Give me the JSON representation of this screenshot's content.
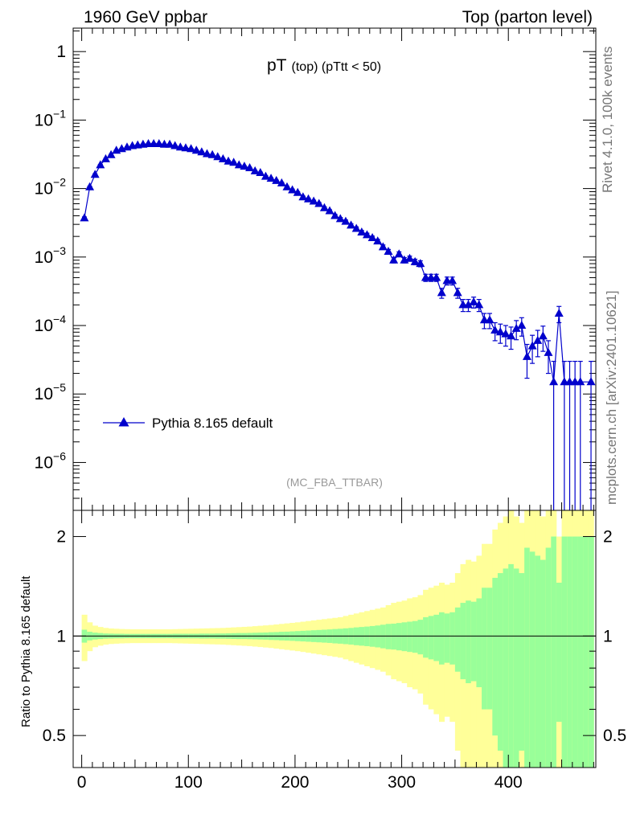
{
  "header": {
    "left": "1960 GeV ppbar",
    "right": "Top (parton level)"
  },
  "side": {
    "rivet": "Rivet 4.1.0,  100k events",
    "mcplots": "mcplots.cern.ch [arXiv:2401.10621]"
  },
  "chart_data": {
    "type": "line",
    "title_main": "pT",
    "title_sub": "(top) (pTtt < 50)",
    "analysis": "(MC_FBA_TTBAR)",
    "legend": "Pythia 8.165 default",
    "yscale": "log",
    "ylim": [
      2e-07,
      2.2
    ],
    "xlim": [
      -8,
      482
    ],
    "y_ticks": [
      {
        "v": 1,
        "base": "1",
        "exp": ""
      },
      {
        "v": 0.1,
        "base": "10",
        "exp": "−1"
      },
      {
        "v": 0.01,
        "base": "10",
        "exp": "−2"
      },
      {
        "v": 0.001,
        "base": "10",
        "exp": "−3"
      },
      {
        "v": 0.0001,
        "base": "10",
        "exp": "−4"
      },
      {
        "v": 1e-05,
        "base": "10",
        "exp": "−5"
      },
      {
        "v": 1e-06,
        "base": "10",
        "exp": "−6"
      }
    ],
    "series": [
      {
        "name": "Pythia 8.165 default",
        "color": "#0000cc",
        "x": [
          2.5,
          7.5,
          12.5,
          17.5,
          22.5,
          27.5,
          32.5,
          37.5,
          42.5,
          47.5,
          52.5,
          57.5,
          62.5,
          67.5,
          72.5,
          77.5,
          82.5,
          87.5,
          92.5,
          97.5,
          102.5,
          107.5,
          112.5,
          117.5,
          122.5,
          127.5,
          132.5,
          137.5,
          142.5,
          147.5,
          152.5,
          157.5,
          162.5,
          167.5,
          172.5,
          177.5,
          182.5,
          187.5,
          192.5,
          197.5,
          202.5,
          207.5,
          212.5,
          217.5,
          222.5,
          227.5,
          232.5,
          237.5,
          242.5,
          247.5,
          252.5,
          257.5,
          262.5,
          267.5,
          272.5,
          277.5,
          282.5,
          287.5,
          292.5,
          297.5,
          302.5,
          307.5,
          312.5,
          317.5,
          322.5,
          327.5,
          332.5,
          337.5,
          342.5,
          347.5,
          352.5,
          357.5,
          362.5,
          367.5,
          372.5,
          377.5,
          382.5,
          387.5,
          392.5,
          397.5,
          402.5,
          407.5,
          412.5,
          417.5,
          422.5,
          427.5,
          432.5,
          437.5,
          442.5,
          447.5,
          452.5,
          457.5,
          462.5,
          467.5,
          477.5
        ],
        "y": [
          0.0037,
          0.0105,
          0.016,
          0.022,
          0.027,
          0.031,
          0.036,
          0.038,
          0.04,
          0.042,
          0.043,
          0.044,
          0.045,
          0.045,
          0.045,
          0.044,
          0.044,
          0.042,
          0.04,
          0.039,
          0.038,
          0.036,
          0.034,
          0.032,
          0.031,
          0.029,
          0.027,
          0.025,
          0.024,
          0.022,
          0.021,
          0.02,
          0.018,
          0.017,
          0.015,
          0.014,
          0.013,
          0.012,
          0.0105,
          0.0095,
          0.0087,
          0.0075,
          0.007,
          0.0065,
          0.006,
          0.0052,
          0.0047,
          0.004,
          0.0036,
          0.0033,
          0.0029,
          0.0026,
          0.0023,
          0.0021,
          0.0019,
          0.0017,
          0.0014,
          0.0012,
          0.0009,
          0.0011,
          0.0009,
          0.00095,
          0.00085,
          0.0008,
          0.0005,
          0.0005,
          0.0005,
          0.0003,
          0.00045,
          0.00045,
          0.0003,
          0.0002,
          0.0002,
          0.00022,
          0.0002,
          0.00012,
          0.00012,
          8.5e-05,
          8e-05,
          7.5e-05,
          7e-05,
          9e-05,
          0.0001,
          3.5e-05,
          5e-05,
          6e-05,
          7e-05,
          4e-05,
          1.5e-05,
          0.00015,
          1.5e-05,
          1.5e-05,
          1.5e-05,
          1.5e-05,
          1.5e-05
        ],
        "err_lo": [
          0.00015,
          0.0003,
          0.0004,
          0.0005,
          0.0005,
          0.0006,
          0.0006,
          0.0007,
          0.0007,
          0.0007,
          0.0007,
          0.0007,
          0.0007,
          0.0007,
          0.0007,
          0.0007,
          0.0007,
          0.0007,
          0.0006,
          0.0006,
          0.0006,
          0.0006,
          0.0006,
          0.0006,
          0.0005,
          0.0005,
          0.0005,
          0.0005,
          0.0005,
          0.0005,
          0.0004,
          0.0004,
          0.0004,
          0.0004,
          0.0004,
          0.0004,
          0.0003,
          0.0003,
          0.0003,
          0.0003,
          0.0003,
          0.00025,
          0.00025,
          0.00025,
          0.00025,
          0.0002,
          0.0002,
          0.0002,
          0.00018,
          0.00017,
          0.00016,
          0.00015,
          0.00014,
          0.00013,
          0.00012,
          0.00011,
          0.0001,
          9e-05,
          8e-05,
          9e-05,
          8e-05,
          8e-05,
          8e-05,
          8e-05,
          6e-05,
          6e-05,
          6e-05,
          5e-05,
          6e-05,
          6e-05,
          5e-05,
          4e-05,
          4e-05,
          4e-05,
          4e-05,
          3e-05,
          3e-05,
          2.5e-05,
          2.5e-05,
          2.5e-05,
          2.5e-05,
          2.8e-05,
          3e-05,
          1.8e-05,
          2.2e-05,
          2.5e-05,
          2.8e-05,
          2e-05,
          1.49e-05,
          4e-05,
          1.49e-05,
          1.49e-05,
          1.49e-05,
          1.49e-05,
          1.49e-05
        ],
        "err_hi": [
          0.00015,
          0.0003,
          0.0004,
          0.0005,
          0.0005,
          0.0006,
          0.0006,
          0.0007,
          0.0007,
          0.0007,
          0.0007,
          0.0007,
          0.0007,
          0.0007,
          0.0007,
          0.0007,
          0.0007,
          0.0007,
          0.0006,
          0.0006,
          0.0006,
          0.0006,
          0.0006,
          0.0006,
          0.0005,
          0.0005,
          0.0005,
          0.0005,
          0.0005,
          0.0005,
          0.0004,
          0.0004,
          0.0004,
          0.0004,
          0.0004,
          0.0004,
          0.0003,
          0.0003,
          0.0003,
          0.0003,
          0.0003,
          0.00025,
          0.00025,
          0.00025,
          0.00025,
          0.0002,
          0.0002,
          0.0002,
          0.00018,
          0.00017,
          0.00016,
          0.00015,
          0.00014,
          0.00013,
          0.00012,
          0.00011,
          0.0001,
          9e-05,
          8e-05,
          9e-05,
          8e-05,
          8e-05,
          8e-05,
          8e-05,
          6e-05,
          6e-05,
          6e-05,
          5e-05,
          6e-05,
          6e-05,
          5e-05,
          4e-05,
          4e-05,
          4e-05,
          4e-05,
          3e-05,
          3e-05,
          2.5e-05,
          2.5e-05,
          2.5e-05,
          2.5e-05,
          2.8e-05,
          3e-05,
          1.8e-05,
          2.2e-05,
          2.5e-05,
          2.8e-05,
          2e-05,
          1.5e-05,
          4e-05,
          1.5e-05,
          1.5e-05,
          1.5e-05,
          1.5e-05,
          1.5e-05
        ]
      }
    ],
    "ratio": {
      "ylabel": "Ratio to Pythia 8.165 default",
      "yscale": "log",
      "ylim": [
        0.4,
        2.4
      ],
      "reference": 1,
      "y_ticks": [
        {
          "v": 0.5,
          "label": "0.5"
        },
        {
          "v": 1,
          "label": "1"
        },
        {
          "v": 2,
          "label": "2"
        }
      ],
      "x_ticks": [
        0,
        100,
        200,
        300,
        400
      ],
      "bins": [
        0,
        5,
        10,
        15,
        20,
        25,
        30,
        35,
        40,
        45,
        50,
        55,
        60,
        65,
        70,
        75,
        80,
        85,
        90,
        95,
        100,
        105,
        110,
        115,
        120,
        125,
        130,
        135,
        140,
        145,
        150,
        155,
        160,
        165,
        170,
        175,
        180,
        185,
        190,
        195,
        200,
        205,
        210,
        215,
        220,
        225,
        230,
        235,
        240,
        245,
        250,
        255,
        260,
        265,
        270,
        275,
        280,
        285,
        290,
        295,
        300,
        305,
        310,
        315,
        320,
        325,
        330,
        335,
        340,
        345,
        350,
        355,
        360,
        365,
        370,
        375,
        380,
        385,
        390,
        395,
        400,
        405,
        410,
        415,
        420,
        425,
        430,
        435,
        440,
        445,
        450,
        455,
        460,
        465,
        470,
        475,
        480
      ],
      "band_green": [
        0.045,
        0.03,
        0.024,
        0.021,
        0.018,
        0.017,
        0.016,
        0.016,
        0.015,
        0.015,
        0.015,
        0.015,
        0.015,
        0.015,
        0.015,
        0.015,
        0.015,
        0.016,
        0.016,
        0.016,
        0.016,
        0.016,
        0.017,
        0.017,
        0.017,
        0.018,
        0.018,
        0.019,
        0.02,
        0.021,
        0.021,
        0.022,
        0.023,
        0.024,
        0.025,
        0.027,
        0.028,
        0.03,
        0.031,
        0.033,
        0.035,
        0.037,
        0.039,
        0.041,
        0.043,
        0.045,
        0.047,
        0.05,
        0.052,
        0.055,
        0.058,
        0.062,
        0.065,
        0.068,
        0.072,
        0.076,
        0.082,
        0.088,
        0.09,
        0.095,
        0.1,
        0.105,
        0.11,
        0.12,
        0.14,
        0.15,
        0.16,
        0.18,
        0.17,
        0.18,
        0.22,
        0.26,
        0.28,
        0.27,
        0.3,
        0.4,
        0.4,
        0.5,
        0.55,
        0.6,
        0.65,
        0.6,
        0.55,
        0.85,
        0.8,
        0.75,
        0.7,
        0.85,
        1.0,
        0.45,
        1.0,
        1.0,
        1.0,
        1.0,
        1.0,
        1.0
      ],
      "band_yellow": [
        0.16,
        0.1,
        0.075,
        0.065,
        0.058,
        0.054,
        0.052,
        0.05,
        0.049,
        0.048,
        0.048,
        0.048,
        0.048,
        0.048,
        0.048,
        0.048,
        0.048,
        0.049,
        0.05,
        0.051,
        0.052,
        0.053,
        0.054,
        0.055,
        0.056,
        0.057,
        0.058,
        0.06,
        0.062,
        0.064,
        0.066,
        0.068,
        0.071,
        0.074,
        0.077,
        0.08,
        0.084,
        0.088,
        0.092,
        0.096,
        0.1,
        0.105,
        0.11,
        0.115,
        0.12,
        0.125,
        0.13,
        0.135,
        0.14,
        0.15,
        0.16,
        0.17,
        0.18,
        0.19,
        0.2,
        0.21,
        0.22,
        0.24,
        0.26,
        0.27,
        0.28,
        0.3,
        0.31,
        0.33,
        0.38,
        0.4,
        0.42,
        0.45,
        0.43,
        0.45,
        0.55,
        0.65,
        0.7,
        0.68,
        0.75,
        0.9,
        0.9,
        1.1,
        1.2,
        1.3,
        1.4,
        1.3,
        1.2,
        1.6,
        1.5,
        1.4,
        1.3,
        1.6,
        1.8,
        1.0,
        1.8,
        1.8,
        1.8,
        1.8,
        1.8,
        1.8
      ]
    }
  }
}
